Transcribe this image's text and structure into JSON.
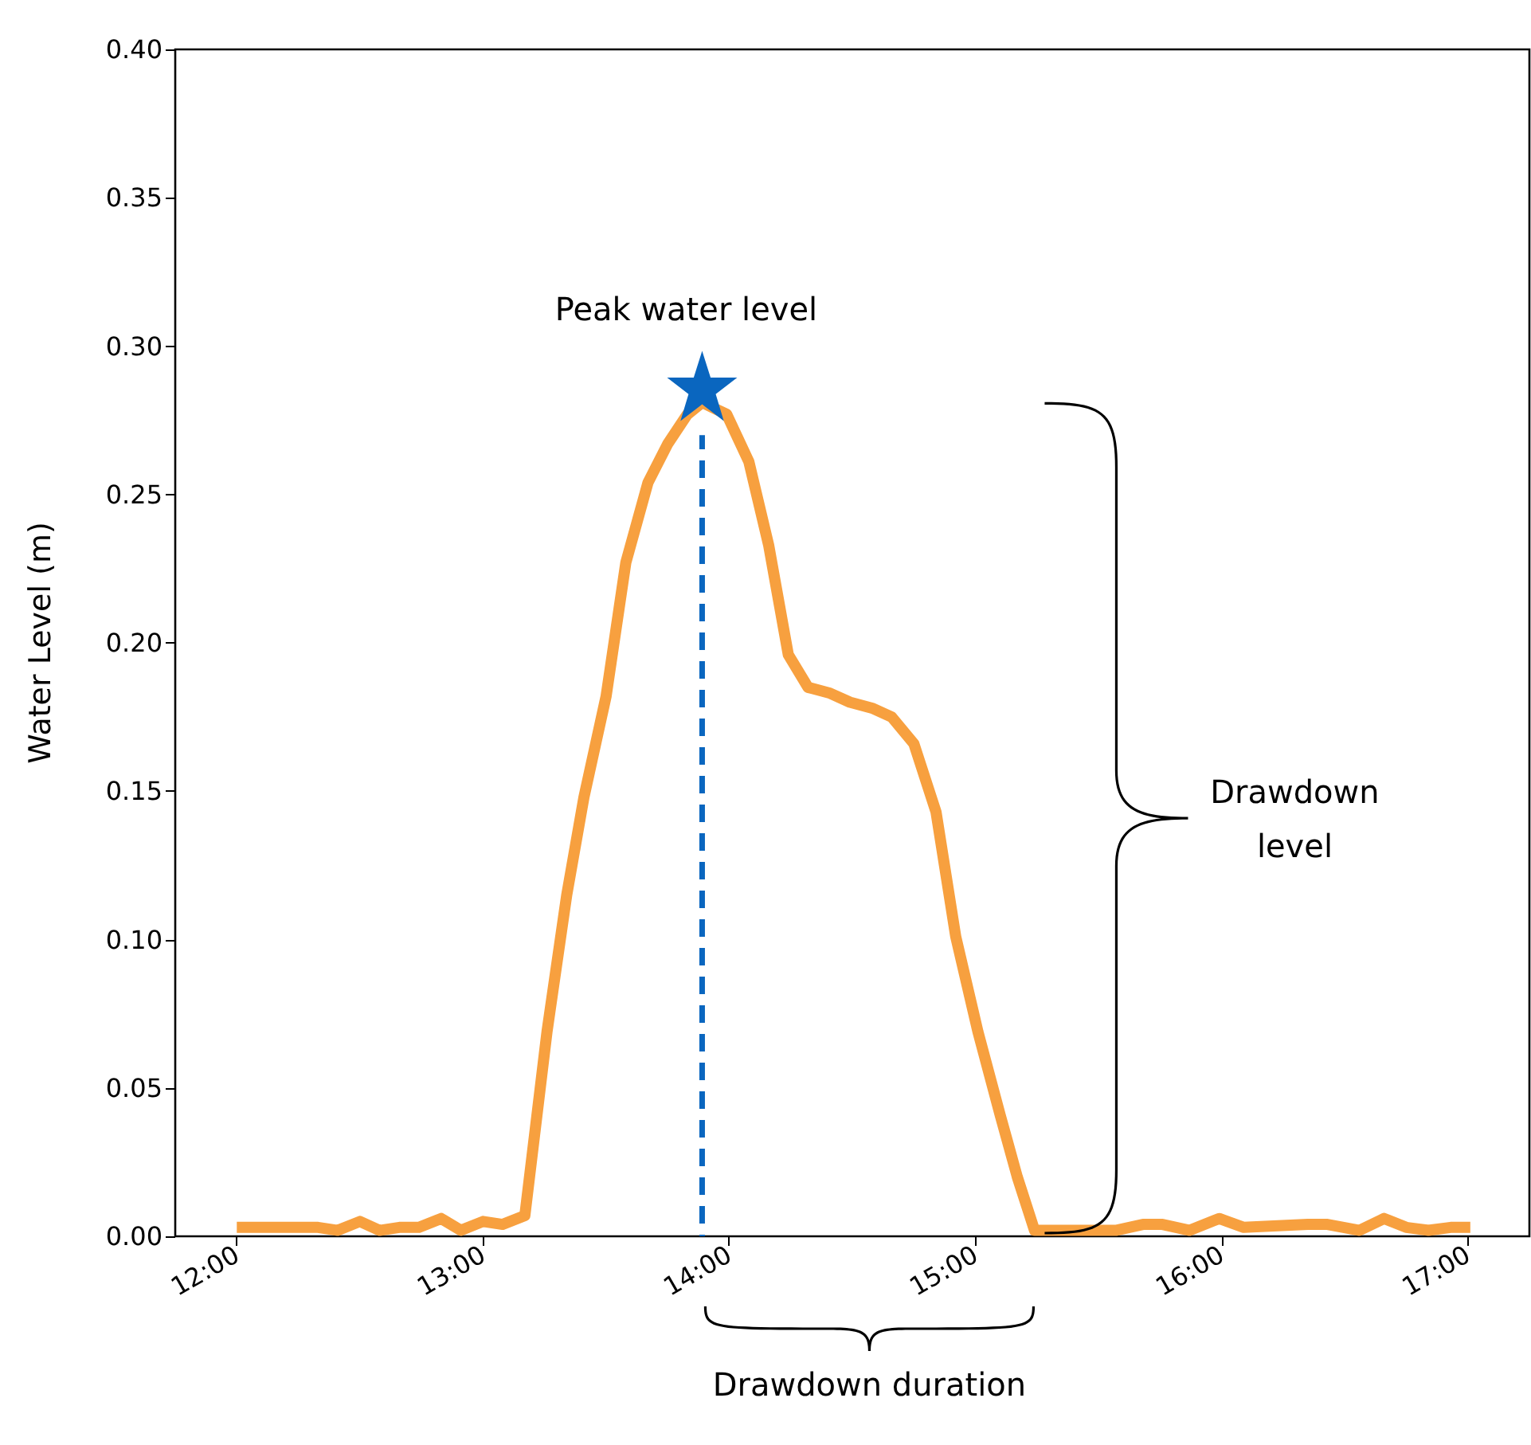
{
  "chart_data": {
    "type": "line",
    "ylabel": "Water Level (m)",
    "xlim": [
      11.75,
      17.25
    ],
    "xticks": [
      {
        "value": 12,
        "label": "12:00"
      },
      {
        "value": 13,
        "label": "13:00"
      },
      {
        "value": 14,
        "label": "14:00"
      },
      {
        "value": 15,
        "label": "15:00"
      },
      {
        "value": 16,
        "label": "16:00"
      },
      {
        "value": 17,
        "label": "17:00"
      }
    ],
    "ylim": [
      0,
      0.4
    ],
    "yticks": [
      {
        "value": 0,
        "label": "0.00"
      },
      {
        "value": 0.05,
        "label": "0.05"
      },
      {
        "value": 0.1,
        "label": "0.10"
      },
      {
        "value": 0.15,
        "label": "0.15"
      },
      {
        "value": 0.2,
        "label": "0.20"
      },
      {
        "value": 0.25,
        "label": "0.25"
      },
      {
        "value": 0.3,
        "label": "0.30"
      },
      {
        "value": 0.35,
        "label": "0.35"
      },
      {
        "value": 0.4,
        "label": "0.40"
      }
    ],
    "grid": false,
    "series": [
      {
        "type": "line",
        "color": "#f7a03f",
        "marker": "none",
        "line_style": "solid",
        "x": [
          12.0,
          12.33,
          12.41,
          12.5,
          12.58,
          12.66,
          12.74,
          12.83,
          12.91,
          13.0,
          13.08,
          13.17,
          13.26,
          13.34,
          13.41,
          13.5,
          13.58,
          13.67,
          13.75,
          13.83,
          13.89,
          13.99,
          14.08,
          14.16,
          14.24,
          14.32,
          14.41,
          14.49,
          14.58,
          14.66,
          14.75,
          14.84,
          14.92,
          15.01,
          15.1,
          15.17,
          15.24,
          15.27,
          15.57,
          15.68,
          15.76,
          15.87,
          15.99,
          16.09,
          16.35,
          16.43,
          16.56,
          16.66,
          16.75,
          16.84,
          16.93,
          17.01
        ],
        "values": [
          0.003,
          0.003,
          0.002,
          0.005,
          0.002,
          0.003,
          0.003,
          0.006,
          0.002,
          0.005,
          0.004,
          0.007,
          0.069,
          0.115,
          0.148,
          0.182,
          0.227,
          0.254,
          0.267,
          0.277,
          0.281,
          0.277,
          0.261,
          0.233,
          0.196,
          0.185,
          0.183,
          0.18,
          0.178,
          0.175,
          0.166,
          0.143,
          0.101,
          0.069,
          0.041,
          0.02,
          0.002,
          0.002,
          0.002,
          0.004,
          0.004,
          0.002,
          0.006,
          0.003,
          0.004,
          0.004,
          0.002,
          0.006,
          0.003,
          0.002,
          0.003,
          0.003
        ]
      },
      {
        "type": "line",
        "color": "#0a66bf",
        "marker": "none",
        "line_style": "dashed",
        "x": [
          13.89,
          13.89
        ],
        "values": [
          0,
          0.27
        ]
      },
      {
        "type": "scatter",
        "color": "#0a66bf",
        "marker": "star",
        "x": [
          13.89
        ],
        "values": [
          0.285
        ]
      }
    ],
    "annotations": [
      {
        "text": "Peak water level",
        "x": 13.89,
        "y": 0.285
      },
      "Drawdown level",
      "Drawdown duration"
    ]
  }
}
